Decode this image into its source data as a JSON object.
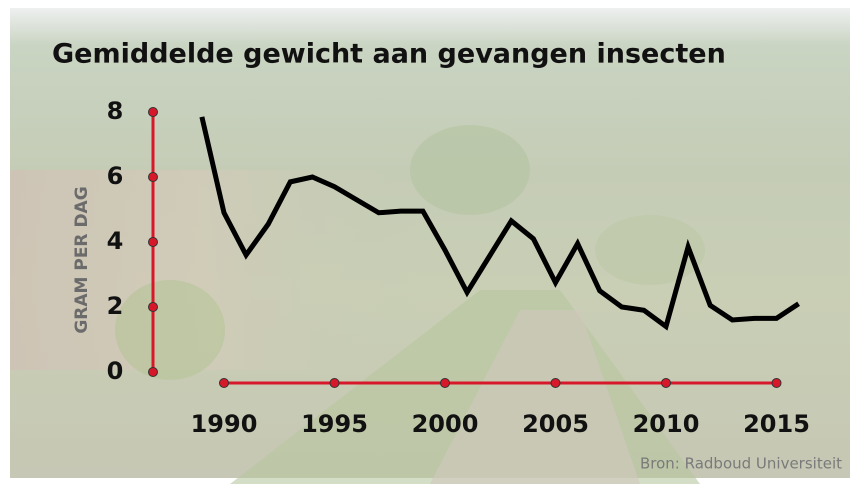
{
  "chart_data": {
    "type": "line",
    "title": "Gemiddelde gewicht aan gevangen insecten",
    "y_label": "GRAM PER DAG",
    "source": "Bron: Radboud Universiteit",
    "x": [
      1989,
      1990,
      1991,
      1992,
      1993,
      1994,
      1995,
      1996,
      1997,
      1998,
      1999,
      2000,
      2001,
      2002,
      2003,
      2004,
      2005,
      2006,
      2007,
      2008,
      2009,
      2010,
      2011,
      2012,
      2013,
      2014,
      2015,
      2016
    ],
    "values": [
      7.85,
      4.9,
      3.6,
      4.55,
      5.85,
      6.0,
      5.7,
      5.3,
      4.9,
      4.95,
      4.95,
      3.75,
      2.45,
      3.55,
      4.65,
      4.1,
      2.75,
      3.95,
      2.5,
      2.0,
      1.9,
      1.4,
      3.85,
      2.05,
      1.6,
      1.65,
      1.65,
      2.1
    ],
    "color": "#000000",
    "axis_color": "#d7182a",
    "xlim": [
      1989,
      2016
    ],
    "xticks": [
      1990,
      1995,
      2000,
      2005,
      2010,
      2015
    ],
    "ylim": [
      0,
      8
    ],
    "yticks": [
      0,
      2,
      4,
      6,
      8
    ],
    "grid": false
  }
}
